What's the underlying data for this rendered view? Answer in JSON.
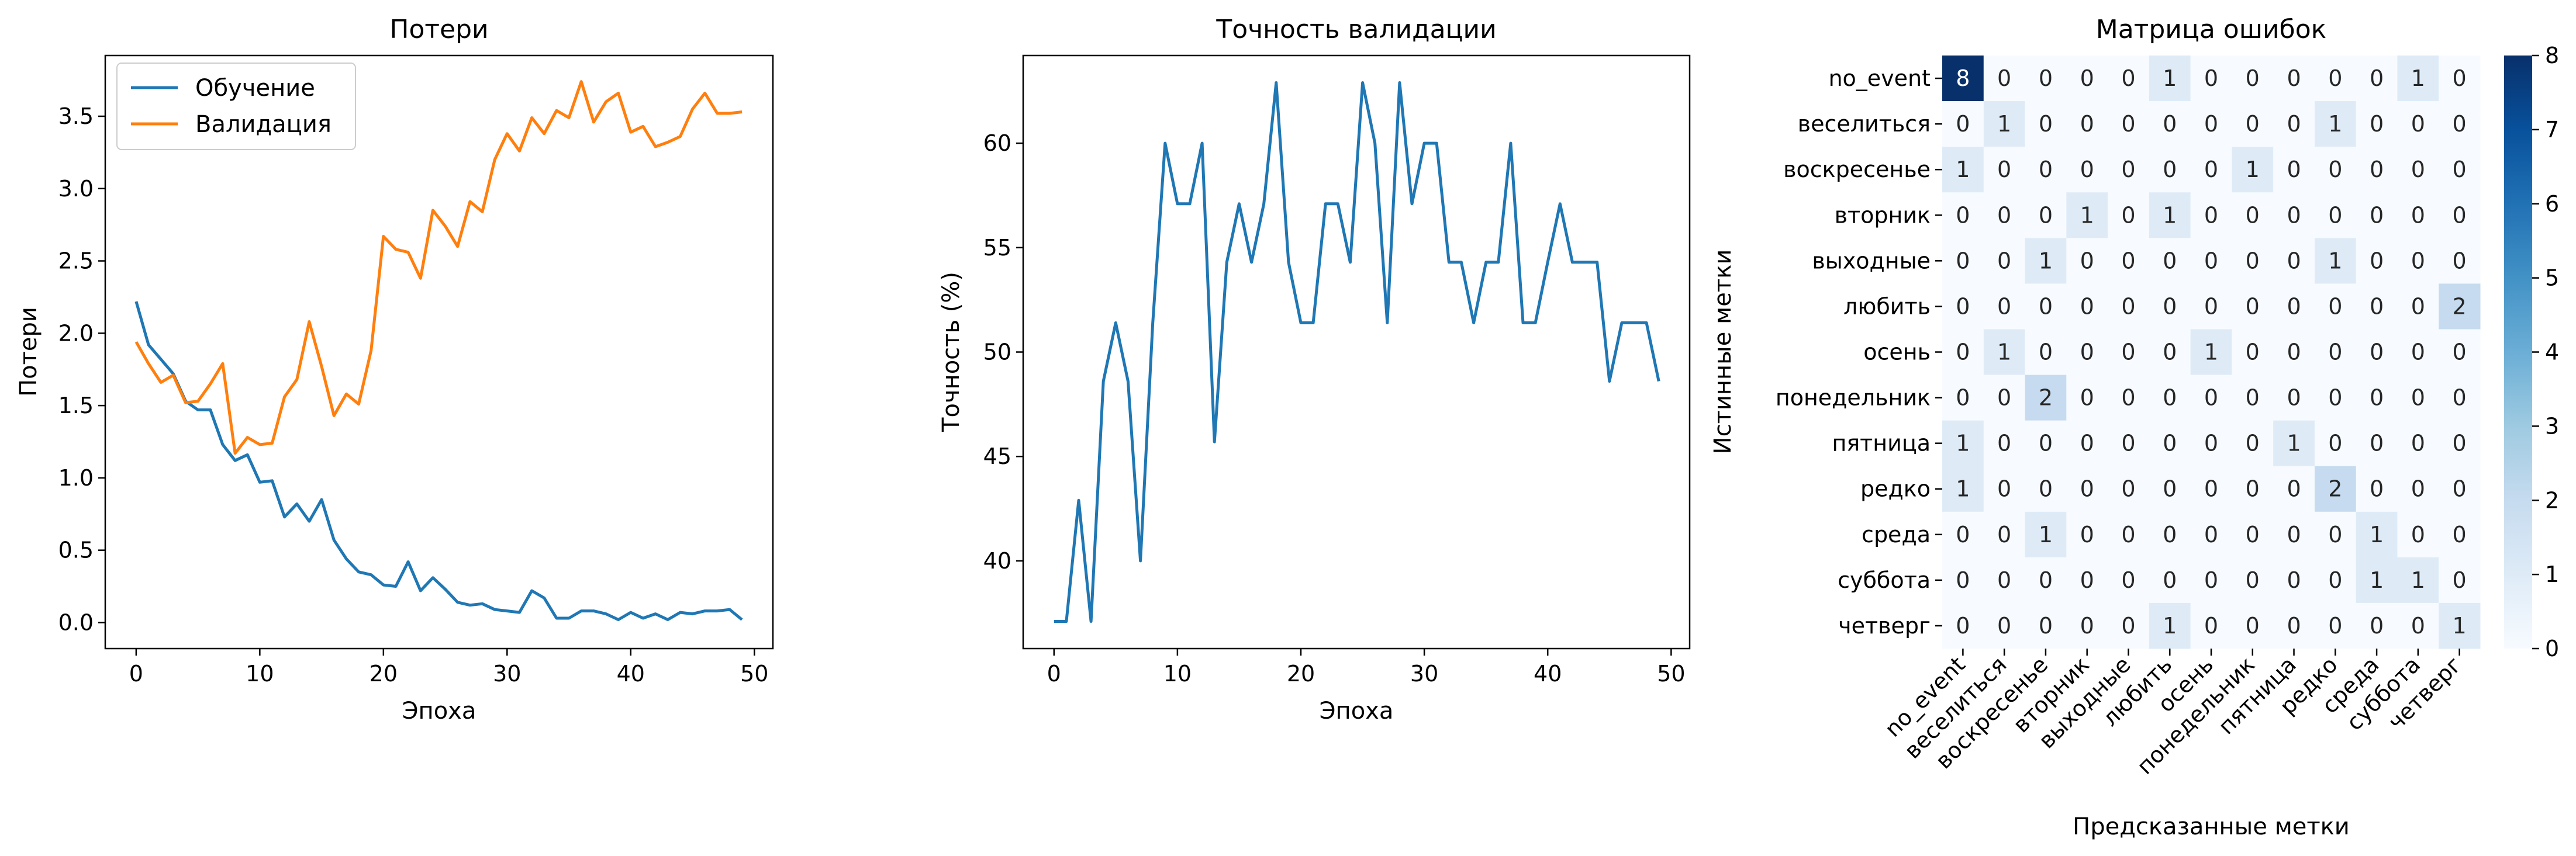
{
  "chart_data": [
    {
      "type": "line",
      "title": "Потери",
      "xlabel": "Эпоха",
      "ylabel": "Потери",
      "xlim": [
        -2.5,
        51.5
      ],
      "ylim": [
        -0.18,
        3.92
      ],
      "xticks": [
        "0",
        "10",
        "20",
        "30",
        "40",
        "50"
      ],
      "yticks": [
        "0.0",
        "0.5",
        "1.0",
        "1.5",
        "2.0",
        "2.5",
        "3.0",
        "3.5"
      ],
      "legend_position": "top-left",
      "grid": false,
      "series": [
        {
          "name": "Обучение",
          "color": "#1f77b4",
          "x": [
            0,
            1,
            2,
            3,
            4,
            5,
            6,
            7,
            8,
            9,
            10,
            11,
            12,
            13,
            14,
            15,
            16,
            17,
            18,
            19,
            20,
            21,
            22,
            23,
            24,
            25,
            26,
            27,
            28,
            29,
            30,
            31,
            32,
            33,
            34,
            35,
            36,
            37,
            38,
            39,
            40,
            41,
            42,
            43,
            44,
            45,
            46,
            47,
            48,
            49
          ],
          "values": [
            2.22,
            1.92,
            1.82,
            1.72,
            1.53,
            1.47,
            1.47,
            1.23,
            1.12,
            1.16,
            0.97,
            0.98,
            0.73,
            0.82,
            0.7,
            0.85,
            0.57,
            0.44,
            0.35,
            0.33,
            0.26,
            0.25,
            0.42,
            0.22,
            0.31,
            0.23,
            0.14,
            0.12,
            0.13,
            0.09,
            0.08,
            0.07,
            0.22,
            0.17,
            0.03,
            0.03,
            0.08,
            0.08,
            0.06,
            0.02,
            0.07,
            0.03,
            0.06,
            0.02,
            0.07,
            0.06,
            0.08,
            0.08,
            0.09,
            0.02
          ]
        },
        {
          "name": "Валидация",
          "color": "#ff7f0e",
          "x": [
            0,
            1,
            2,
            3,
            4,
            5,
            6,
            7,
            8,
            9,
            10,
            11,
            12,
            13,
            14,
            15,
            16,
            17,
            18,
            19,
            20,
            21,
            22,
            23,
            24,
            25,
            26,
            27,
            28,
            29,
            30,
            31,
            32,
            33,
            34,
            35,
            36,
            37,
            38,
            39,
            40,
            41,
            42,
            43,
            44,
            45,
            46,
            47,
            48,
            49
          ],
          "values": [
            1.94,
            1.79,
            1.66,
            1.71,
            1.52,
            1.53,
            1.65,
            1.79,
            1.17,
            1.28,
            1.23,
            1.24,
            1.56,
            1.68,
            2.08,
            1.77,
            1.43,
            1.58,
            1.51,
            1.88,
            2.67,
            2.58,
            2.56,
            2.38,
            2.85,
            2.74,
            2.6,
            2.91,
            2.84,
            3.2,
            3.38,
            3.26,
            3.49,
            3.38,
            3.54,
            3.49,
            3.74,
            3.46,
            3.6,
            3.66,
            3.39,
            3.43,
            3.29,
            3.32,
            3.36,
            3.55,
            3.66,
            3.52,
            3.52,
            3.53
          ]
        }
      ]
    },
    {
      "type": "line",
      "title": "Точность валидации",
      "xlabel": "Эпоха",
      "ylabel": "Точность (%)",
      "xlim": [
        -2.5,
        51.5
      ],
      "ylim": [
        35.8,
        64.2
      ],
      "xticks": [
        "0",
        "10",
        "20",
        "30",
        "40",
        "50"
      ],
      "yticks": [
        "40",
        "45",
        "50",
        "55",
        "60"
      ],
      "grid": false,
      "series": [
        {
          "color": "#1f77b4",
          "x": [
            0,
            1,
            2,
            3,
            4,
            5,
            6,
            7,
            8,
            9,
            10,
            11,
            12,
            13,
            14,
            15,
            16,
            17,
            18,
            19,
            20,
            21,
            22,
            23,
            24,
            25,
            26,
            27,
            28,
            29,
            30,
            31,
            32,
            33,
            34,
            35,
            36,
            37,
            38,
            39,
            40,
            41,
            42,
            43,
            44,
            45,
            46,
            47,
            48,
            49
          ],
          "values": [
            37.1,
            37.1,
            42.9,
            37.1,
            48.6,
            51.4,
            48.6,
            40.0,
            51.4,
            60.0,
            57.1,
            57.1,
            60.0,
            45.7,
            54.3,
            57.1,
            54.3,
            57.1,
            62.9,
            54.3,
            51.4,
            51.4,
            57.1,
            57.1,
            54.3,
            62.9,
            60.0,
            51.4,
            62.9,
            57.1,
            60.0,
            60.0,
            54.3,
            54.3,
            51.4,
            54.3,
            54.3,
            60.0,
            51.4,
            51.4,
            54.3,
            57.1,
            54.3,
            54.3,
            54.3,
            48.6,
            51.4,
            51.4,
            51.4,
            48.6
          ]
        }
      ]
    },
    {
      "type": "heatmap",
      "title": "Матрица ошибок",
      "xlabel": "Предсказанные метки",
      "ylabel": "Истинные метки",
      "labels": [
        "no_event",
        "веселиться",
        "воскресенье",
        "вторник",
        "выходные",
        "любить",
        "осень",
        "понедельник",
        "пятница",
        "редко",
        "среда",
        "суббота",
        "четверг"
      ],
      "matrix": [
        [
          8,
          0,
          0,
          0,
          0,
          1,
          0,
          0,
          0,
          0,
          0,
          1,
          0
        ],
        [
          0,
          1,
          0,
          0,
          0,
          0,
          0,
          0,
          0,
          1,
          0,
          0,
          0
        ],
        [
          1,
          0,
          0,
          0,
          0,
          0,
          0,
          1,
          0,
          0,
          0,
          0,
          0
        ],
        [
          0,
          0,
          0,
          1,
          0,
          1,
          0,
          0,
          0,
          0,
          0,
          0,
          0
        ],
        [
          0,
          0,
          1,
          0,
          0,
          0,
          0,
          0,
          0,
          1,
          0,
          0,
          0
        ],
        [
          0,
          0,
          0,
          0,
          0,
          0,
          0,
          0,
          0,
          0,
          0,
          0,
          2
        ],
        [
          0,
          1,
          0,
          0,
          0,
          0,
          1,
          0,
          0,
          0,
          0,
          0,
          0
        ],
        [
          0,
          0,
          2,
          0,
          0,
          0,
          0,
          0,
          0,
          0,
          0,
          0,
          0
        ],
        [
          1,
          0,
          0,
          0,
          0,
          0,
          0,
          0,
          1,
          0,
          0,
          0,
          0
        ],
        [
          1,
          0,
          0,
          0,
          0,
          0,
          0,
          0,
          0,
          2,
          0,
          0,
          0
        ],
        [
          0,
          0,
          1,
          0,
          0,
          0,
          0,
          0,
          0,
          0,
          1,
          0,
          0
        ],
        [
          0,
          0,
          0,
          0,
          0,
          0,
          0,
          0,
          0,
          0,
          1,
          1,
          0
        ],
        [
          0,
          0,
          0,
          0,
          0,
          1,
          0,
          0,
          0,
          0,
          0,
          0,
          1
        ]
      ],
      "colorbar": {
        "min": 0,
        "max": 8,
        "ticks": [
          "0",
          "1",
          "2",
          "3",
          "4",
          "5",
          "6",
          "7",
          "8"
        ]
      },
      "colormap": [
        "#f7fbff",
        "#deebf7",
        "#c6dbef",
        "#9ecae1",
        "#6baed6",
        "#4292c6",
        "#2171b5",
        "#08519c",
        "#08306b"
      ]
    }
  ]
}
